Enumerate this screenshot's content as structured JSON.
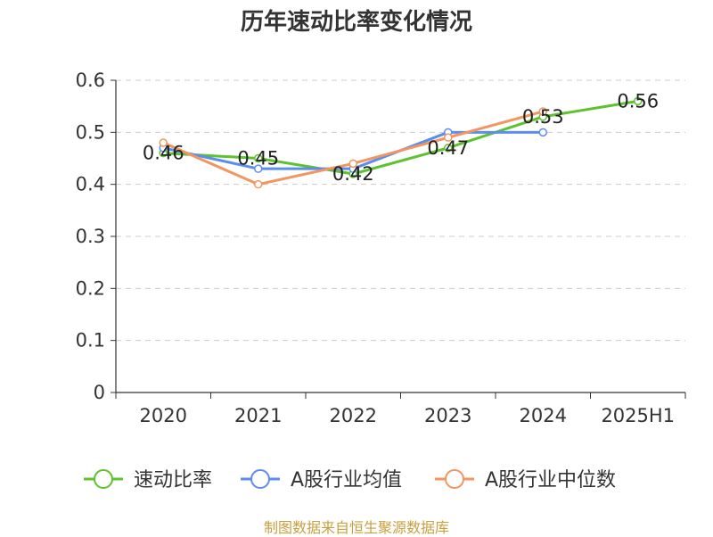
{
  "chart_data": {
    "type": "line",
    "title": "历年速动比率变化情况",
    "categories": [
      "2020",
      "2021",
      "2022",
      "2023",
      "2024",
      "2025H1"
    ],
    "ylim": [
      0,
      0.6
    ],
    "yticks": [
      "0",
      "0.1",
      "0.2",
      "0.3",
      "0.4",
      "0.5",
      "0.6"
    ],
    "grid": true,
    "legend_position": "bottom",
    "series": [
      {
        "name": "速动比率",
        "color": "#5cc22e",
        "values": [
          0.46,
          0.45,
          0.42,
          0.47,
          0.53,
          0.56
        ],
        "labels": [
          "0.46",
          "0.45",
          "0.42",
          "0.47",
          "0.53",
          "0.56"
        ]
      },
      {
        "name": "A股行业均值",
        "color": "#5b8def",
        "values": [
          0.47,
          0.43,
          0.43,
          0.5,
          0.5,
          null
        ]
      },
      {
        "name": "A股行业中位数",
        "color": "#f3955f",
        "values": [
          0.48,
          0.4,
          0.44,
          0.49,
          0.54,
          null
        ]
      }
    ]
  },
  "source": {
    "text": "制图数据来自恒生聚源数据库",
    "color": "#c7a040"
  }
}
